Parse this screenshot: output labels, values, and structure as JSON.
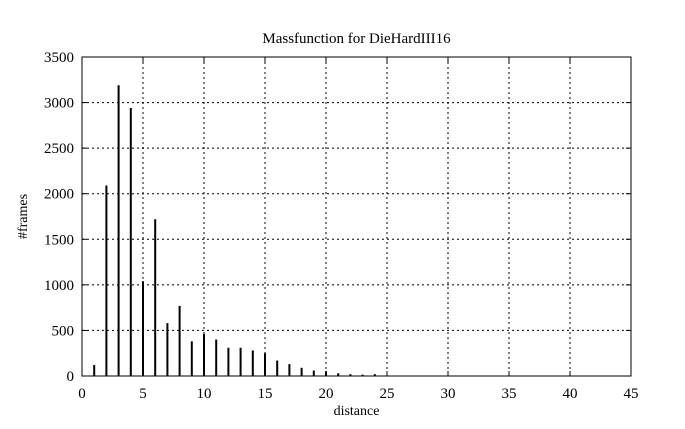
{
  "chart_data": {
    "type": "bar",
    "title": "Massfunction for DieHardIII16",
    "xlabel": "distance",
    "ylabel": "#frames",
    "xlim": [
      0,
      45
    ],
    "ylim": [
      0,
      3500
    ],
    "xticks": [
      0,
      5,
      10,
      15,
      20,
      25,
      30,
      35,
      40,
      45
    ],
    "yticks": [
      0,
      500,
      1000,
      1500,
      2000,
      2500,
      3000,
      3500
    ],
    "grid": true,
    "x": [
      1,
      2,
      3,
      4,
      5,
      6,
      7,
      8,
      9,
      10,
      11,
      12,
      13,
      14,
      15,
      16,
      17,
      18,
      19,
      20,
      21,
      22,
      23,
      24
    ],
    "values": [
      120,
      2090,
      3190,
      2940,
      1040,
      1720,
      580,
      770,
      380,
      460,
      400,
      310,
      310,
      280,
      250,
      170,
      130,
      90,
      60,
      50,
      30,
      20,
      15,
      20
    ],
    "colors": {
      "bars": "#000000",
      "grid": "#000000",
      "background": "#ffffff"
    }
  }
}
